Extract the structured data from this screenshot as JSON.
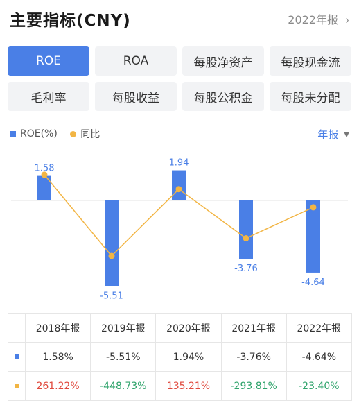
{
  "header": {
    "title": "主要指标(CNY)",
    "period": "2022年报",
    "chevron_icon": "chevron-right-icon"
  },
  "tabs": [
    {
      "label": "ROE",
      "active": true
    },
    {
      "label": "ROA",
      "active": false
    },
    {
      "label": "每股净资产",
      "active": false
    },
    {
      "label": "每股现金流",
      "active": false
    },
    {
      "label": "毛利率",
      "active": false
    },
    {
      "label": "每股收益",
      "active": false
    },
    {
      "label": "每股公积金",
      "active": false
    },
    {
      "label": "每股未分配",
      "active": false
    }
  ],
  "legend": {
    "series1": "ROE(%)",
    "series2": "同比",
    "frequency": "年报"
  },
  "colors": {
    "accent": "#4a7fe6",
    "line": "#f2b544",
    "positive": "#e0493d",
    "negative": "#2fa36b"
  },
  "chart_data": {
    "type": "bar",
    "categories": [
      "2018年报",
      "2019年报",
      "2020年报",
      "2021年报",
      "2022年报"
    ],
    "series": [
      {
        "name": "ROE(%)",
        "type": "bar",
        "values": [
          1.58,
          -5.51,
          1.94,
          -3.76,
          -4.64
        ]
      },
      {
        "name": "同比",
        "type": "line",
        "values": [
          261.22,
          -448.73,
          135.21,
          -293.81,
          -23.4
        ]
      }
    ],
    "bar_labels": [
      "1.58",
      "-5.51",
      "1.94",
      "-3.76",
      "-4.64"
    ]
  },
  "table": {
    "headers": [
      "2018年报",
      "2019年报",
      "2020年报",
      "2021年报",
      "2022年报"
    ],
    "roe_row": [
      "1.58%",
      "-5.51%",
      "1.94%",
      "-3.76%",
      "-4.64%"
    ],
    "yoy_row": [
      "261.22%",
      "-448.73%",
      "135.21%",
      "-293.81%",
      "-23.40%"
    ]
  }
}
